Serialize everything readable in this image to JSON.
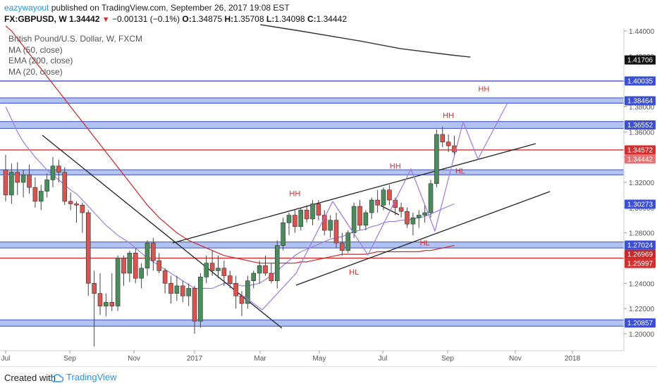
{
  "header": {
    "username": "eazywayout",
    "published_text": "published on TradingView.com, September 26, 2017 19:08 EST",
    "symbol": "FX:GBPUSD, W",
    "last": "1.34442",
    "change": "−0.00131 (−0.1%)",
    "o_label": "O:",
    "o": "1.34875",
    "h_label": "H:",
    "h": "1.35708",
    "l_label": "L:",
    "l": "1.34098",
    "c_label": "C:",
    "c": "1.34442"
  },
  "legend": {
    "title": "British Pound/U.S. Dollar, W, FXCM",
    "ma50": "MA (50, close)",
    "ema200": "EMA (200, close)",
    "ma20": "MA (20, close)"
  },
  "footer": {
    "created_with": "Created with",
    "brand": "TradingView"
  },
  "colors": {
    "up": "#4a8c5b",
    "down": "#d9534f",
    "zone": "#9fb4ef",
    "zone_border": "#3a4fd6",
    "red_line": "#d32f2f",
    "ma20": "#9b7ee6",
    "ma50": "#c62828",
    "ema200": "#333333",
    "label_red": "#d32f2f",
    "brand": "#2196f3"
  },
  "chart_data": {
    "type": "candlestick",
    "timeframe": "W",
    "x_ticks": [
      "Jul",
      "Sep",
      "Nov",
      "2017",
      "Mar",
      "May",
      "Jul",
      "Sep",
      "Nov",
      "2018"
    ],
    "y_ticks": [
      "1.44000",
      "1.42000",
      "1.40000",
      "1.38000",
      "1.36000",
      "1.34000",
      "1.32000",
      "1.30000",
      "1.28000",
      "1.26000",
      "1.24000",
      "1.22000",
      "1.20000"
    ],
    "ylim": [
      1.19,
      1.445
    ],
    "price_labels": [
      {
        "value": "1.41706",
        "kind": "ema200"
      },
      {
        "value": "1.40035",
        "kind": "level"
      },
      {
        "value": "1.38464",
        "kind": "zone"
      },
      {
        "value": "1.36552",
        "kind": "zone"
      },
      {
        "value": "1.34572",
        "kind": "red"
      },
      {
        "value": "1.34442",
        "kind": "last"
      },
      {
        "value": "1.30273",
        "kind": "ma20"
      },
      {
        "value": "1.27024",
        "kind": "zone"
      },
      {
        "value": "1.26969",
        "kind": "ma50"
      },
      {
        "value": "1.25997",
        "kind": "red"
      },
      {
        "value": "1.20857",
        "kind": "zone"
      }
    ],
    "candles": [
      [
        1.33,
        1.342,
        1.305,
        1.31
      ],
      [
        1.31,
        1.335,
        1.303,
        1.328
      ],
      [
        1.328,
        1.336,
        1.31,
        1.32
      ],
      [
        1.32,
        1.33,
        1.308,
        1.326
      ],
      [
        1.326,
        1.334,
        1.311,
        1.316
      ],
      [
        1.316,
        1.324,
        1.3,
        1.305
      ],
      [
        1.305,
        1.318,
        1.298,
        1.313
      ],
      [
        1.313,
        1.327,
        1.308,
        1.322
      ],
      [
        1.322,
        1.34,
        1.316,
        1.333
      ],
      [
        1.333,
        1.338,
        1.32,
        1.328
      ],
      [
        1.328,
        1.332,
        1.302,
        1.305
      ],
      [
        1.305,
        1.312,
        1.298,
        1.303
      ],
      [
        1.303,
        1.305,
        1.288,
        1.302
      ],
      [
        1.302,
        1.304,
        1.28,
        1.296
      ],
      [
        1.296,
        1.298,
        1.23,
        1.24
      ],
      [
        1.24,
        1.25,
        1.19,
        1.232
      ],
      [
        1.232,
        1.248,
        1.215,
        1.222
      ],
      [
        1.222,
        1.232,
        1.214,
        1.225
      ],
      [
        1.225,
        1.248,
        1.218,
        1.222
      ],
      [
        1.222,
        1.262,
        1.218,
        1.26
      ],
      [
        1.26,
        1.262,
        1.238,
        1.248
      ],
      [
        1.248,
        1.266,
        1.241,
        1.264
      ],
      [
        1.264,
        1.268,
        1.24,
        1.244
      ],
      [
        1.244,
        1.256,
        1.236,
        1.252
      ],
      [
        1.252,
        1.274,
        1.246,
        1.272
      ],
      [
        1.272,
        1.276,
        1.25,
        1.258
      ],
      [
        1.258,
        1.264,
        1.248,
        1.25
      ],
      [
        1.25,
        1.252,
        1.232,
        1.24
      ],
      [
        1.24,
        1.246,
        1.224,
        1.232
      ],
      [
        1.232,
        1.246,
        1.226,
        1.238
      ],
      [
        1.238,
        1.242,
        1.225,
        1.23
      ],
      [
        1.23,
        1.24,
        1.222,
        1.236
      ],
      [
        1.236,
        1.238,
        1.2,
        1.21
      ],
      [
        1.21,
        1.248,
        1.205,
        1.245
      ],
      [
        1.245,
        1.262,
        1.24,
        1.256
      ],
      [
        1.256,
        1.266,
        1.246,
        1.25
      ],
      [
        1.25,
        1.262,
        1.244,
        1.252
      ],
      [
        1.252,
        1.258,
        1.238,
        1.246
      ],
      [
        1.246,
        1.25,
        1.236,
        1.24
      ],
      [
        1.24,
        1.246,
        1.22,
        1.23
      ],
      [
        1.23,
        1.234,
        1.214,
        1.224
      ],
      [
        1.224,
        1.246,
        1.22,
        1.242
      ],
      [
        1.242,
        1.25,
        1.236,
        1.248
      ],
      [
        1.248,
        1.258,
        1.24,
        1.254
      ],
      [
        1.254,
        1.262,
        1.246,
        1.248
      ],
      [
        1.248,
        1.256,
        1.24,
        1.242
      ],
      [
        1.242,
        1.274,
        1.236,
        1.27
      ],
      [
        1.27,
        1.292,
        1.266,
        1.288
      ],
      [
        1.288,
        1.296,
        1.278,
        1.294
      ],
      [
        1.294,
        1.298,
        1.28,
        1.285
      ],
      [
        1.285,
        1.3,
        1.282,
        1.298
      ],
      [
        1.298,
        1.302,
        1.288,
        1.291
      ],
      [
        1.291,
        1.306,
        1.286,
        1.303
      ],
      [
        1.303,
        1.306,
        1.29,
        1.294
      ],
      [
        1.294,
        1.298,
        1.278,
        1.282
      ],
      [
        1.282,
        1.294,
        1.276,
        1.29
      ],
      [
        1.29,
        1.296,
        1.268,
        1.272
      ],
      [
        1.272,
        1.28,
        1.262,
        1.266
      ],
      [
        1.266,
        1.282,
        1.264,
        1.28
      ],
      [
        1.28,
        1.304,
        1.276,
        1.301
      ],
      [
        1.301,
        1.306,
        1.282,
        1.286
      ],
      [
        1.286,
        1.298,
        1.282,
        1.296
      ],
      [
        1.296,
        1.308,
        1.291,
        1.306
      ],
      [
        1.306,
        1.314,
        1.296,
        1.302
      ],
      [
        1.302,
        1.316,
        1.298,
        1.314
      ],
      [
        1.314,
        1.318,
        1.302,
        1.306
      ],
      [
        1.306,
        1.308,
        1.294,
        1.3
      ],
      [
        1.3,
        1.304,
        1.292,
        1.297
      ],
      [
        1.297,
        1.3,
        1.284,
        1.287
      ],
      [
        1.287,
        1.296,
        1.278,
        1.292
      ],
      [
        1.292,
        1.298,
        1.284,
        1.294
      ],
      [
        1.294,
        1.302,
        1.288,
        1.296
      ],
      [
        1.296,
        1.322,
        1.292,
        1.319
      ],
      [
        1.319,
        1.362,
        1.316,
        1.358
      ],
      [
        1.358,
        1.364,
        1.348,
        1.352
      ],
      [
        1.352,
        1.358,
        1.344,
        1.349
      ],
      [
        1.349,
        1.357,
        1.341,
        1.344
      ]
    ],
    "zones": [
      {
        "from": 1.3828,
        "to": 1.387
      },
      {
        "from": 1.3628,
        "to": 1.3682
      },
      {
        "from": 1.326,
        "to": 1.33
      },
      {
        "from": 1.268,
        "to": 1.2728
      },
      {
        "from": 1.206,
        "to": 1.211
      }
    ],
    "levels": [
      {
        "value": 1.40035,
        "style": "blue"
      },
      {
        "value": 1.34572,
        "style": "red"
      },
      {
        "value": 1.25997,
        "style": "red"
      }
    ],
    "ma20": [
      1.38,
      1.37,
      1.36,
      1.352,
      1.346,
      1.34,
      1.335,
      1.33,
      1.326,
      1.322,
      1.318,
      1.314,
      1.311,
      1.306,
      1.301,
      1.296,
      1.291,
      1.286,
      1.282,
      1.278,
      1.275,
      1.272,
      1.268,
      1.264,
      1.26,
      1.257,
      1.254,
      1.251,
      1.248,
      1.245,
      1.242,
      1.239,
      1.236,
      1.236,
      1.236,
      1.236,
      1.238,
      1.24,
      1.24,
      1.239,
      1.238,
      1.238,
      1.239,
      1.24,
      1.243,
      1.246,
      1.25,
      1.254,
      1.258,
      1.262,
      1.265,
      1.267,
      1.269,
      1.271,
      1.273,
      1.275,
      1.276,
      1.277,
      1.279,
      1.281,
      1.282,
      1.283,
      1.285,
      1.286,
      1.288,
      1.289,
      1.289,
      1.29,
      1.29,
      1.291,
      1.292,
      1.293,
      1.295,
      1.297,
      1.299,
      1.301,
      1.303
    ],
    "ma50": [
      1.444,
      1.44,
      1.434,
      1.428,
      1.422,
      1.416,
      1.41,
      1.404,
      1.398,
      1.392,
      1.386,
      1.38,
      1.374,
      1.368,
      1.362,
      1.356,
      1.35,
      1.344,
      1.338,
      1.332,
      1.326,
      1.32,
      1.314,
      1.308,
      1.302,
      1.297,
      1.292,
      1.288,
      1.284,
      1.28,
      1.277,
      1.274,
      1.272,
      1.27,
      1.268,
      1.266,
      1.264,
      1.262,
      1.261,
      1.26,
      1.259,
      1.258,
      1.257,
      1.256,
      1.256,
      1.256,
      1.256,
      1.256,
      1.256,
      1.256,
      1.257,
      1.257,
      1.258,
      1.259,
      1.26,
      1.261,
      1.262,
      1.263,
      1.263,
      1.263,
      1.263,
      1.263,
      1.264,
      1.265,
      1.265,
      1.265,
      1.265,
      1.265,
      1.265,
      1.265,
      1.265,
      1.266,
      1.266,
      1.267,
      1.268,
      1.269,
      1.27
    ],
    "ema200_points": [
      [
        0.26,
        1.445
      ],
      [
        0.3,
        1.44
      ],
      [
        0.36,
        1.432
      ],
      [
        0.4,
        1.426
      ],
      [
        0.45,
        1.421
      ],
      [
        0.47,
        1.4193
      ]
    ],
    "annotations": [
      {
        "text": "HH",
        "at_candle": 49,
        "price": 1.309
      },
      {
        "text": "HH",
        "at_candle": 66,
        "price": 1.331
      },
      {
        "text": "HH",
        "at_candle": 75,
        "price": 1.371
      },
      {
        "text": "HH",
        "at_candle": 81,
        "price": 1.392
      },
      {
        "text": "HL",
        "at_candle": 59,
        "price": 1.247
      },
      {
        "text": "HL",
        "at_candle": 71,
        "price": 1.27
      },
      {
        "text": "HL",
        "at_candle": 77,
        "price": 1.327
      }
    ]
  }
}
